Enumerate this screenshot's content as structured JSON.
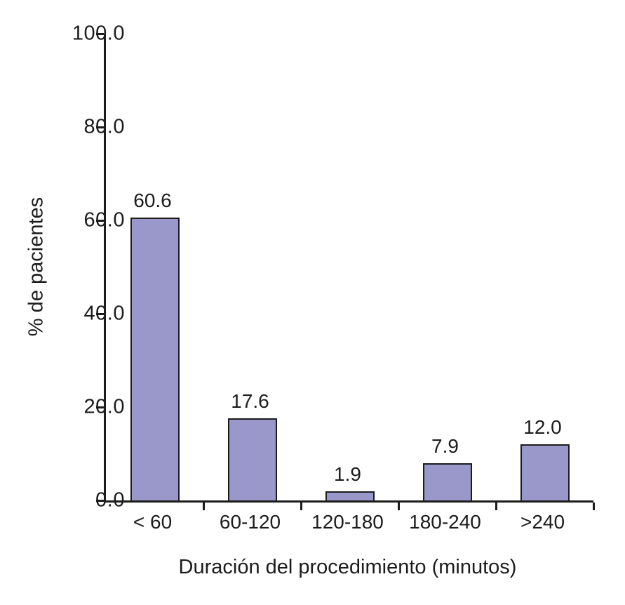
{
  "chart_data": {
    "type": "bar",
    "title": "",
    "categories": [
      "< 60",
      "60-120",
      "120-180",
      "180-240",
      ">240"
    ],
    "values": [
      60.6,
      17.6,
      1.9,
      7.9,
      12.0
    ],
    "value_labels": [
      "60.6",
      "17.6",
      "1.9",
      "7.9",
      "12.0"
    ],
    "xlabel": "Duración del procedimiento (minutos)",
    "ylabel": "% de pacientes",
    "ylim": [
      0,
      100
    ],
    "yticks": [
      0,
      20,
      40,
      60,
      80,
      100
    ],
    "ytick_labels": [
      "0.0",
      "20.0",
      "40.0",
      "60.0",
      "80.0",
      "100.0"
    ],
    "grid": false,
    "legend": "none",
    "colors": {
      "bar_fill": "#9a98cb",
      "bar_border": "#1c1c1c",
      "axis": "#1c1c1c",
      "background": "#ffffff"
    }
  }
}
